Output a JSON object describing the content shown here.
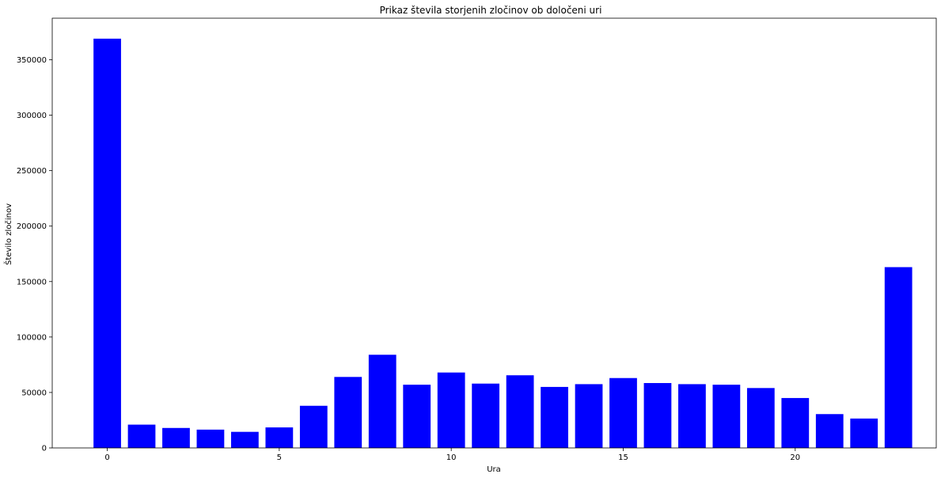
{
  "chart_data": {
    "type": "bar",
    "title": "Prikaz števila storjenih zločinov ob določeni uri",
    "xlabel": "Ura",
    "ylabel": "Število zločinov",
    "x": [
      0,
      1,
      2,
      3,
      4,
      5,
      6,
      7,
      8,
      9,
      10,
      11,
      12,
      13,
      14,
      15,
      16,
      17,
      18,
      19,
      20,
      21,
      22,
      23
    ],
    "values": [
      369000,
      21000,
      18000,
      16500,
      14500,
      18500,
      38000,
      64000,
      84000,
      57000,
      68000,
      58000,
      65500,
      55000,
      57500,
      63000,
      58500,
      57500,
      57000,
      54000,
      45000,
      30500,
      26500,
      163000
    ],
    "xlim": [
      -1.6,
      24.1
    ],
    "ylim": [
      0,
      387450
    ],
    "xticks": [
      0,
      5,
      10,
      15,
      20
    ],
    "yticks": [
      0,
      50000,
      100000,
      150000,
      200000,
      250000,
      300000,
      350000
    ],
    "bar_color": "#0000ff",
    "grid": false,
    "legend": "none"
  }
}
